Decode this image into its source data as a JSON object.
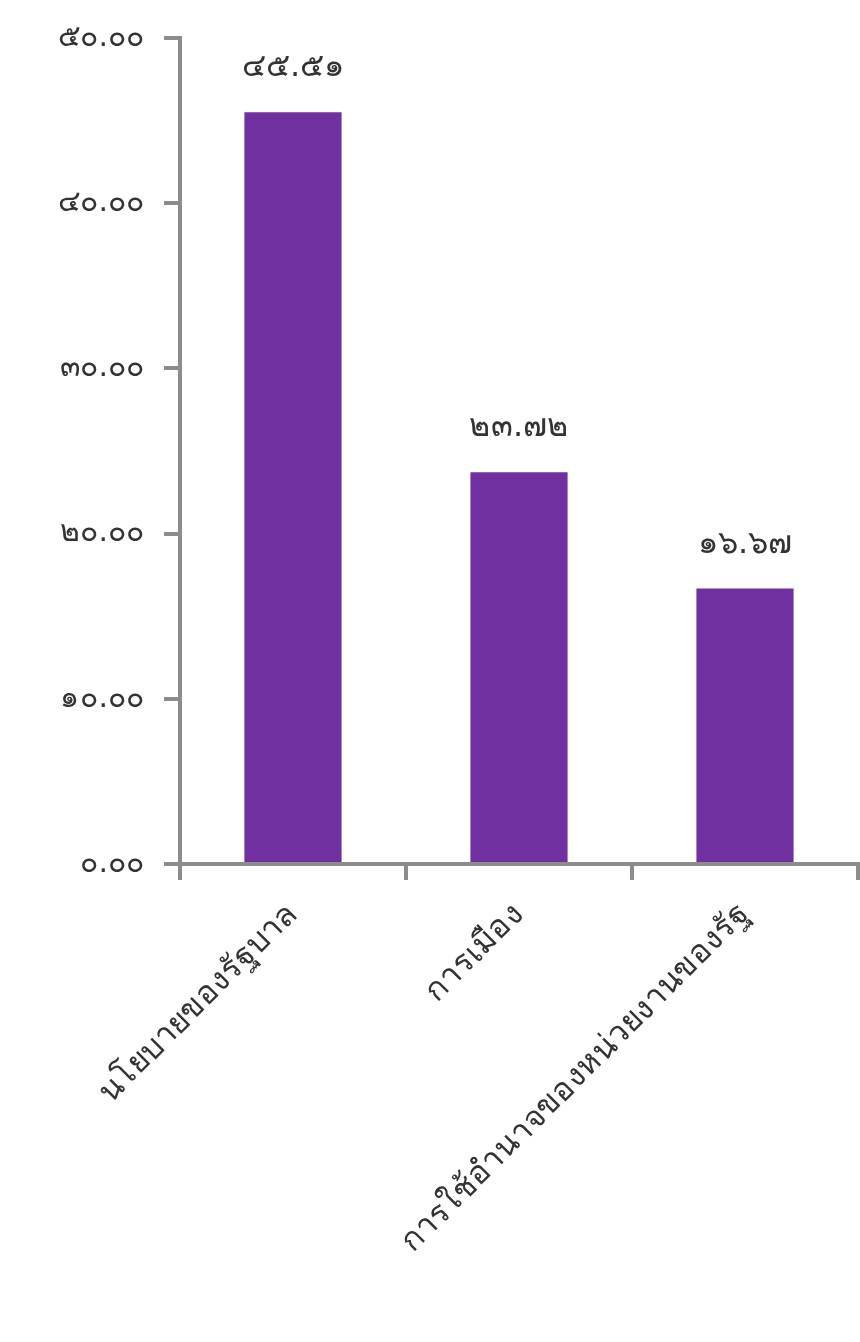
{
  "chart_data": {
    "type": "bar",
    "categories": [
      "นโยบายของรัฐบาล",
      "การเมือง",
      "การใช้อำนาจของหน่วยงานของรัฐ"
    ],
    "values": [
      45.51,
      23.72,
      16.67
    ],
    "color": "#7030a0",
    "value_labels": [
      "๔๕.๕๑",
      "๒๓.๗๒",
      "๑๖.๖๗"
    ],
    "ylim": [
      0,
      50
    ],
    "yticks": [
      {
        "value": 0,
        "label": "๐.๐๐"
      },
      {
        "value": 10,
        "label": "๑๐.๐๐"
      },
      {
        "value": 20,
        "label": "๒๐.๐๐"
      },
      {
        "value": 30,
        "label": "๓๐.๐๐"
      },
      {
        "value": 40,
        "label": "๔๐.๐๐"
      },
      {
        "value": 50,
        "label": "๕๐.๐๐"
      }
    ]
  }
}
